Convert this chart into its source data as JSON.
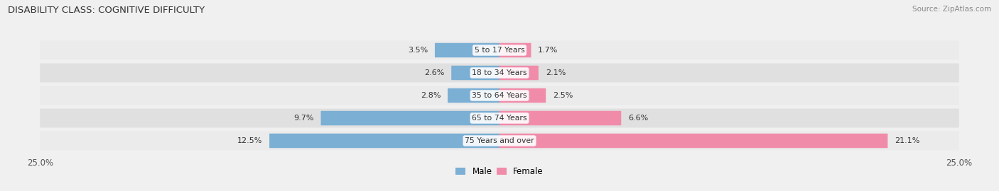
{
  "title": "DISABILITY CLASS: COGNITIVE DIFFICULTY",
  "source": "Source: ZipAtlas.com",
  "categories": [
    "5 to 17 Years",
    "18 to 34 Years",
    "35 to 64 Years",
    "65 to 74 Years",
    "75 Years and over"
  ],
  "male_values": [
    3.5,
    2.6,
    2.8,
    9.7,
    12.5
  ],
  "female_values": [
    1.7,
    2.1,
    2.5,
    6.6,
    21.1
  ],
  "max_value": 25.0,
  "male_color": "#7bafd4",
  "female_color": "#f08caa",
  "row_colors": [
    "#ebebeb",
    "#e0e0e0",
    "#ebebeb",
    "#e0e0e0",
    "#ebebeb"
  ],
  "bar_height": 0.6,
  "title_fontsize": 9.5,
  "label_fontsize": 7.8,
  "value_fontsize": 8.0,
  "tick_fontsize": 8.5,
  "background_color": "#f0f0f0",
  "text_color": "#333333",
  "source_color": "#888888"
}
